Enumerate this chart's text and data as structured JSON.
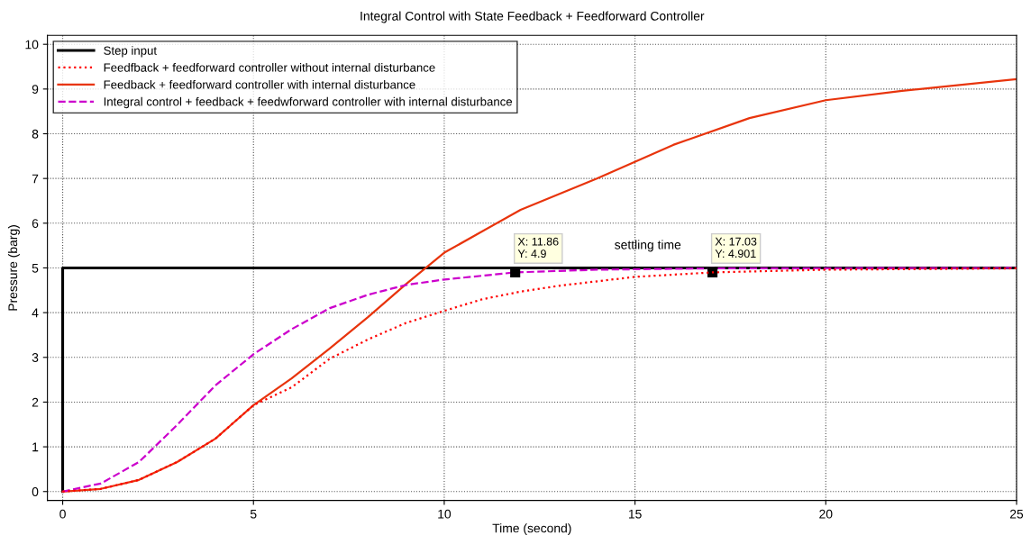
{
  "chart_data": {
    "type": "line",
    "title": "Integral Control with State Feedback + Feedforward Controller",
    "xlabel": "Time (second)",
    "ylabel": "Pressure (barg)",
    "xlim": [
      -0.4,
      25
    ],
    "xticks": [
      0,
      5,
      10,
      15,
      20,
      25
    ],
    "ylim": [
      -0.2,
      10.2
    ],
    "yticks": [
      0,
      1,
      2,
      3,
      4,
      5,
      6,
      7,
      8,
      9,
      10
    ],
    "grid": true,
    "legend": "top left",
    "marker": "none",
    "series": [
      {
        "name": "Step input",
        "color": "#000000",
        "line_style": "solid",
        "x": [
          0,
          0,
          25
        ],
        "values": [
          0,
          5,
          5
        ]
      },
      {
        "name": "Feedfback + feedforward controller without internal disturbance",
        "color": "#ff0000",
        "line_style": "dotted",
        "x": [
          0,
          1,
          2,
          3,
          4,
          5,
          6,
          7,
          8,
          9,
          10,
          11,
          12,
          13,
          15,
          17.03,
          20,
          25
        ],
        "values": [
          0,
          0.06,
          0.26,
          0.66,
          1.18,
          1.93,
          2.33,
          2.97,
          3.4,
          3.77,
          4.04,
          4.3,
          4.47,
          4.6,
          4.8,
          4.9,
          4.96,
          4.99
        ]
      },
      {
        "name": "Feedback + feedforward controller with internal disturbance",
        "color": "#e8340c",
        "line_style": "solid",
        "x": [
          0,
          1,
          2,
          3,
          4,
          5,
          6,
          7,
          8,
          9,
          10,
          12,
          14,
          16,
          18,
          20,
          22,
          25
        ],
        "values": [
          0,
          0.06,
          0.26,
          0.66,
          1.18,
          1.93,
          2.53,
          3.2,
          3.9,
          4.64,
          5.34,
          6.3,
          7.0,
          7.75,
          8.35,
          8.75,
          8.96,
          9.22
        ]
      },
      {
        "name": "Integral control + feedback + feedwforward controller with internal disturbance",
        "color": "#cc00cc",
        "line_style": "dashed",
        "x": [
          0,
          1,
          2,
          3,
          4,
          5,
          6,
          7,
          8,
          9,
          10,
          11.86,
          14,
          17,
          25
        ],
        "values": [
          0,
          0.18,
          0.66,
          1.49,
          2.37,
          3.07,
          3.63,
          4.1,
          4.4,
          4.62,
          4.74,
          4.9,
          4.96,
          4.99,
          5.0
        ]
      }
    ],
    "annotations": [
      {
        "text": "X: 11.86\nY: 4.9",
        "x": 11.86,
        "y": 4.9
      },
      {
        "text": "X: 17.03\nY: 4.901",
        "x": 17.03,
        "y": 4.901
      },
      "settling time"
    ]
  }
}
